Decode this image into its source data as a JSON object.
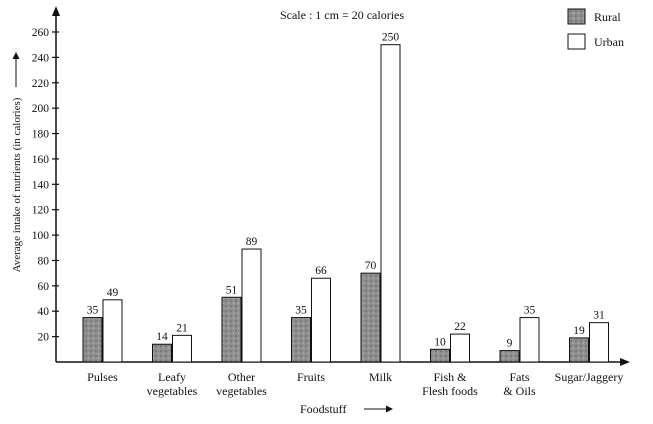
{
  "chart_data": {
    "type": "bar",
    "scale_note": "Scale : 1 cm = 20 calories",
    "xlabel": "Foodstuff",
    "ylabel": "Average intake of nutrients (in calories)",
    "ylim": [
      0,
      270
    ],
    "yticks": [
      20,
      40,
      60,
      80,
      100,
      120,
      140,
      160,
      180,
      200,
      220,
      240,
      260
    ],
    "grid": false,
    "legend_position": "top-right",
    "categories": [
      [
        "Pulses"
      ],
      [
        "Leafy",
        "vegetables"
      ],
      [
        "Other",
        "vegetables"
      ],
      [
        "Fruits"
      ],
      [
        "Milk"
      ],
      [
        "Fish &",
        "Flesh foods"
      ],
      [
        "Fats",
        "& Oils"
      ],
      [
        "Sugar/Jaggery"
      ]
    ],
    "series": [
      {
        "name": "Rural",
        "color": "#8a8a8a",
        "values": [
          35,
          14,
          51,
          35,
          70,
          10,
          9,
          19
        ]
      },
      {
        "name": "Urban",
        "color": "#ffffff",
        "values": [
          49,
          21,
          89,
          66,
          250,
          22,
          35,
          31
        ]
      }
    ]
  }
}
